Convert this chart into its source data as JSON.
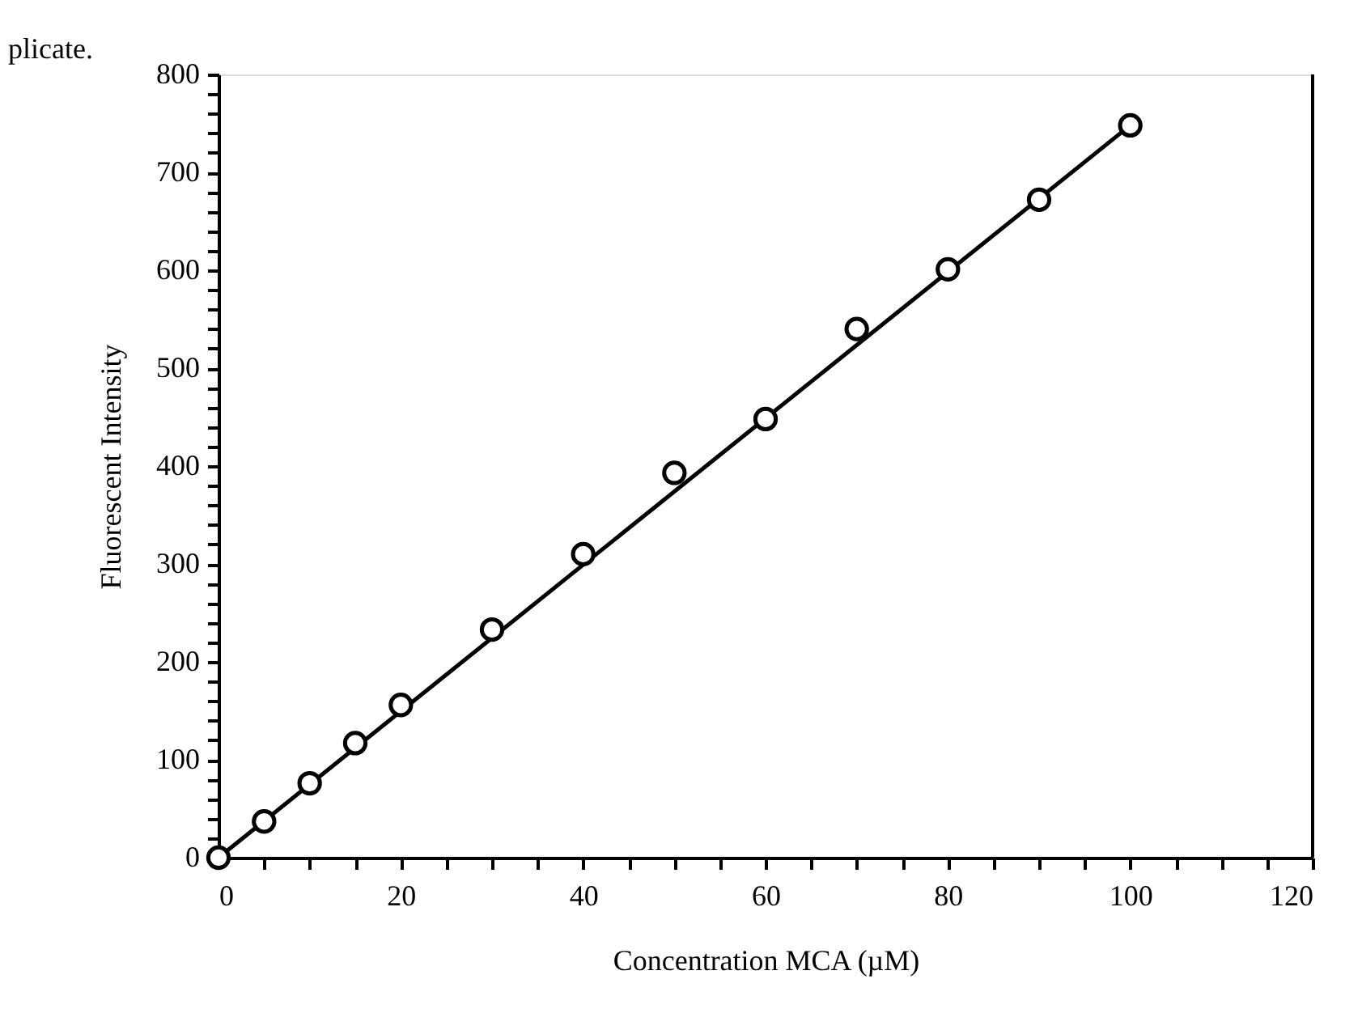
{
  "chart_data": {
    "type": "scatter",
    "xlabel": "Concentration MCA (µM)",
    "ylabel": "Fluorescent Intensity",
    "annotations": [
      "plicate."
    ],
    "x": [
      0,
      5,
      10,
      15,
      20,
      30,
      40,
      50,
      60,
      70,
      80,
      90,
      100
    ],
    "series": [
      {
        "type": "scatter",
        "color": "#000000",
        "marker": "circle",
        "values": [
          0,
          37,
          76,
          117,
          156,
          233,
          310,
          393,
          448,
          540,
          601,
          672,
          748
        ]
      },
      {
        "type": "line",
        "color": "#000000",
        "marker": "none",
        "line_style": "solid",
        "x": [
          0,
          100
        ],
        "values": [
          0,
          748
        ]
      }
    ],
    "xlim": [
      0,
      120
    ],
    "ylim": [
      0,
      800
    ],
    "xticks": [
      0,
      {
        "value": 5,
        "label": null
      },
      {
        "value": 10,
        "label": null
      },
      {
        "value": 15,
        "label": null
      },
      20,
      {
        "value": 25,
        "label": null
      },
      {
        "value": 30,
        "label": null
      },
      {
        "value": 35,
        "label": null
      },
      40,
      {
        "value": 45,
        "label": null
      },
      {
        "value": 50,
        "label": null
      },
      {
        "value": 55,
        "label": null
      },
      60,
      {
        "value": 65,
        "label": null
      },
      {
        "value": 70,
        "label": null
      },
      {
        "value": 75,
        "label": null
      },
      80,
      {
        "value": 85,
        "label": null
      },
      {
        "value": 90,
        "label": null
      },
      {
        "value": 95,
        "label": null
      },
      100,
      {
        "value": 105,
        "label": null
      },
      {
        "value": 110,
        "label": null
      },
      {
        "value": 115,
        "label": null
      },
      120
    ],
    "yticks": [
      0,
      {
        "value": 20,
        "label": null
      },
      {
        "value": 40,
        "label": null
      },
      {
        "value": 60,
        "label": null
      },
      {
        "value": 80,
        "label": null
      },
      100,
      {
        "value": 120,
        "label": null
      },
      {
        "value": 140,
        "label": null
      },
      {
        "value": 160,
        "label": null
      },
      {
        "value": 180,
        "label": null
      },
      200,
      {
        "value": 220,
        "label": null
      },
      {
        "value": 240,
        "label": null
      },
      {
        "value": 260,
        "label": null
      },
      {
        "value": 280,
        "label": null
      },
      300,
      {
        "value": 320,
        "label": null
      },
      {
        "value": 340,
        "label": null
      },
      {
        "value": 360,
        "label": null
      },
      {
        "value": 380,
        "label": null
      },
      400,
      {
        "value": 420,
        "label": null
      },
      {
        "value": 440,
        "label": null
      },
      {
        "value": 460,
        "label": null
      },
      {
        "value": 480,
        "label": null
      },
      500,
      {
        "value": 520,
        "label": null
      },
      {
        "value": 540,
        "label": null
      },
      {
        "value": 560,
        "label": null
      },
      {
        "value": 580,
        "label": null
      },
      600,
      {
        "value": 620,
        "label": null
      },
      {
        "value": 640,
        "label": null
      },
      {
        "value": 660,
        "label": null
      },
      {
        "value": 680,
        "label": null
      },
      700,
      {
        "value": 720,
        "label": null
      },
      {
        "value": 740,
        "label": null
      },
      {
        "value": 760,
        "label": null
      },
      {
        "value": 780,
        "label": null
      },
      800
    ],
    "grid": false
  }
}
